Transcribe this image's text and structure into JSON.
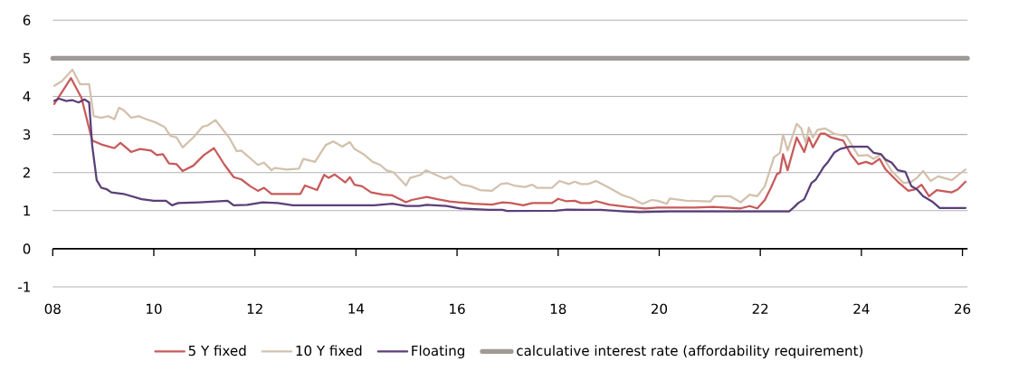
{
  "chart_data": {
    "type": "line",
    "xlim": [
      2008,
      2026.1
    ],
    "ylim": [
      -1,
      6
    ],
    "xticks": [
      {
        "value": 2008,
        "label": "08"
      },
      {
        "value": 2010,
        "label": "10"
      },
      {
        "value": 2012,
        "label": "12"
      },
      {
        "value": 2014,
        "label": "14"
      },
      {
        "value": 2016,
        "label": "16"
      },
      {
        "value": 2018,
        "label": "18"
      },
      {
        "value": 2020,
        "label": "20"
      },
      {
        "value": 2022,
        "label": "22"
      },
      {
        "value": 2024,
        "label": "24"
      },
      {
        "value": 2026,
        "label": "26"
      }
    ],
    "yticks": [
      -1,
      0,
      1,
      2,
      3,
      4,
      5,
      6
    ],
    "grid": "y",
    "legend": "bottom",
    "series": [
      {
        "name": "5 Y fixed",
        "color": "#c85a5a",
        "x": [
          2008.03,
          2008.36,
          2008.57,
          2008.78,
          2008.96,
          2009.22,
          2009.34,
          2009.55,
          2009.73,
          2009.94,
          2010.06,
          2010.18,
          2010.3,
          2010.45,
          2010.57,
          2010.78,
          2010.99,
          2011.19,
          2011.4,
          2011.58,
          2011.73,
          2011.91,
          2012.06,
          2012.18,
          2012.33,
          2012.63,
          2012.9,
          2012.99,
          2013.23,
          2013.37,
          2013.46,
          2013.58,
          2013.79,
          2013.88,
          2013.97,
          2014.12,
          2014.3,
          2014.54,
          2014.72,
          2014.99,
          2015.1,
          2015.4,
          2015.61,
          2015.85,
          2016.03,
          2016.33,
          2016.69,
          2016.9,
          2017.07,
          2017.31,
          2017.49,
          2017.88,
          2018.0,
          2018.15,
          2018.33,
          2018.45,
          2018.63,
          2018.75,
          2019.01,
          2019.37,
          2019.73,
          2019.97,
          2020.18,
          2020.72,
          2021.07,
          2021.61,
          2021.79,
          2021.94,
          2022.09,
          2022.21,
          2022.33,
          2022.39,
          2022.45,
          2022.54,
          2022.72,
          2022.87,
          2022.96,
          2023.04,
          2023.19,
          2023.28,
          2023.4,
          2023.64,
          2023.79,
          2023.94,
          2024.09,
          2024.21,
          2024.36,
          2024.48,
          2024.72,
          2024.93,
          2025.07,
          2025.19,
          2025.34,
          2025.49,
          2025.79,
          2025.91,
          2026.06
        ],
        "values": [
          3.8,
          4.48,
          3.96,
          2.84,
          2.74,
          2.64,
          2.78,
          2.54,
          2.62,
          2.58,
          2.46,
          2.48,
          2.24,
          2.22,
          2.04,
          2.18,
          2.46,
          2.64,
          2.2,
          1.88,
          1.82,
          1.64,
          1.52,
          1.6,
          1.44,
          1.44,
          1.44,
          1.66,
          1.54,
          1.94,
          1.86,
          1.95,
          1.74,
          1.88,
          1.68,
          1.64,
          1.48,
          1.42,
          1.4,
          1.22,
          1.28,
          1.36,
          1.3,
          1.24,
          1.22,
          1.18,
          1.16,
          1.22,
          1.2,
          1.14,
          1.2,
          1.2,
          1.31,
          1.25,
          1.26,
          1.2,
          1.2,
          1.25,
          1.16,
          1.1,
          1.06,
          1.08,
          1.08,
          1.08,
          1.1,
          1.06,
          1.12,
          1.06,
          1.28,
          1.6,
          1.96,
          2.0,
          2.48,
          2.06,
          2.92,
          2.54,
          2.92,
          2.66,
          3.02,
          3.02,
          2.92,
          2.84,
          2.48,
          2.22,
          2.28,
          2.22,
          2.36,
          2.08,
          1.76,
          1.52,
          1.56,
          1.68,
          1.38,
          1.54,
          1.48,
          1.56,
          1.76
        ]
      },
      {
        "name": "10 Y fixed",
        "color": "#d3c1ad",
        "x": [
          2008.03,
          2008.18,
          2008.39,
          2008.54,
          2008.72,
          2008.81,
          2008.96,
          2009.1,
          2009.22,
          2009.31,
          2009.4,
          2009.55,
          2009.7,
          2009.85,
          2010.03,
          2010.21,
          2010.33,
          2010.45,
          2010.57,
          2010.78,
          2010.96,
          2011.07,
          2011.22,
          2011.37,
          2011.49,
          2011.64,
          2011.73,
          2012.06,
          2012.18,
          2012.33,
          2012.39,
          2012.63,
          2012.87,
          2012.96,
          2013.19,
          2013.4,
          2013.55,
          2013.73,
          2013.88,
          2013.97,
          2014.15,
          2014.33,
          2014.48,
          2014.6,
          2014.75,
          2014.99,
          2015.07,
          2015.28,
          2015.39,
          2015.58,
          2015.76,
          2015.88,
          2016.09,
          2016.27,
          2016.45,
          2016.69,
          2016.87,
          2016.99,
          2017.13,
          2017.34,
          2017.49,
          2017.58,
          2017.88,
          2018.03,
          2018.21,
          2018.33,
          2018.45,
          2018.6,
          2018.75,
          2019.01,
          2019.28,
          2019.43,
          2019.67,
          2019.85,
          2019.97,
          2020.15,
          2020.21,
          2020.54,
          2021.01,
          2021.1,
          2021.4,
          2021.61,
          2021.79,
          2021.94,
          2022.09,
          2022.27,
          2022.39,
          2022.45,
          2022.54,
          2022.72,
          2022.81,
          2022.9,
          2022.96,
          2023.04,
          2023.13,
          2023.28,
          2023.46,
          2023.7,
          2023.94,
          2024.12,
          2024.24,
          2024.39,
          2024.6,
          2024.84,
          2024.99,
          2025.1,
          2025.22,
          2025.37,
          2025.52,
          2025.79,
          2025.94,
          2026.06
        ],
        "values": [
          4.28,
          4.4,
          4.7,
          4.32,
          4.32,
          3.48,
          3.44,
          3.48,
          3.4,
          3.7,
          3.64,
          3.44,
          3.48,
          3.4,
          3.32,
          3.2,
          2.96,
          2.92,
          2.66,
          2.92,
          3.2,
          3.24,
          3.38,
          3.12,
          2.92,
          2.56,
          2.58,
          2.2,
          2.26,
          2.06,
          2.12,
          2.08,
          2.1,
          2.36,
          2.28,
          2.72,
          2.82,
          2.68,
          2.8,
          2.62,
          2.48,
          2.28,
          2.2,
          2.06,
          2.0,
          1.66,
          1.86,
          1.94,
          2.06,
          1.94,
          1.84,
          1.9,
          1.68,
          1.64,
          1.54,
          1.52,
          1.7,
          1.72,
          1.66,
          1.62,
          1.68,
          1.6,
          1.6,
          1.78,
          1.7,
          1.76,
          1.7,
          1.7,
          1.78,
          1.6,
          1.4,
          1.34,
          1.18,
          1.28,
          1.26,
          1.18,
          1.32,
          1.26,
          1.24,
          1.38,
          1.38,
          1.22,
          1.42,
          1.38,
          1.64,
          2.4,
          2.52,
          3.0,
          2.58,
          3.28,
          3.16,
          2.78,
          3.18,
          2.92,
          3.12,
          3.16,
          3.02,
          2.96,
          2.44,
          2.46,
          2.36,
          2.48,
          2.04,
          1.72,
          1.76,
          1.86,
          2.04,
          1.78,
          1.9,
          1.8,
          1.96,
          2.08
        ]
      },
      {
        "name": "Floating",
        "color": "#5b3f78",
        "x": [
          2008.03,
          2008.12,
          2008.27,
          2008.39,
          2008.51,
          2008.63,
          2008.72,
          2008.78,
          2008.87,
          2008.96,
          2009.07,
          2009.16,
          2009.4,
          2009.76,
          2010.0,
          2010.24,
          2010.36,
          2010.48,
          2010.9,
          2011.46,
          2011.58,
          2011.85,
          2012.15,
          2012.45,
          2012.75,
          2013.04,
          2014.12,
          2014.36,
          2014.72,
          2014.99,
          2015.25,
          2015.4,
          2015.79,
          2016.06,
          2016.63,
          2016.9,
          2016.99,
          2017.94,
          2018.18,
          2018.54,
          2018.84,
          2019.31,
          2019.61,
          2020.21,
          2022.57,
          2022.66,
          2022.75,
          2022.87,
          2023.01,
          2023.1,
          2023.25,
          2023.34,
          2023.46,
          2023.58,
          2023.76,
          2024.12,
          2024.24,
          2024.39,
          2024.48,
          2024.6,
          2024.72,
          2024.87,
          2024.99,
          2025.1,
          2025.22,
          2025.4,
          2025.55,
          2026.06
        ],
        "values": [
          3.88,
          3.94,
          3.88,
          3.9,
          3.84,
          3.92,
          3.84,
          2.72,
          1.8,
          1.6,
          1.56,
          1.48,
          1.44,
          1.3,
          1.26,
          1.26,
          1.14,
          1.2,
          1.22,
          1.26,
          1.14,
          1.15,
          1.22,
          1.2,
          1.14,
          1.14,
          1.14,
          1.14,
          1.18,
          1.12,
          1.12,
          1.15,
          1.12,
          1.06,
          1.02,
          1.02,
          0.99,
          1.0,
          1.03,
          1.02,
          1.02,
          0.98,
          0.96,
          0.98,
          0.98,
          1.08,
          1.2,
          1.3,
          1.72,
          1.82,
          2.14,
          2.28,
          2.52,
          2.62,
          2.68,
          2.68,
          2.52,
          2.48,
          2.34,
          2.26,
          2.06,
          2.02,
          1.64,
          1.56,
          1.38,
          1.24,
          1.07,
          1.07
        ]
      }
    ],
    "ref_lines": [
      {
        "axis": "y",
        "value": 5,
        "label": "calculative interest rate (affordability requirement)",
        "color": "#a09a96"
      }
    ]
  }
}
